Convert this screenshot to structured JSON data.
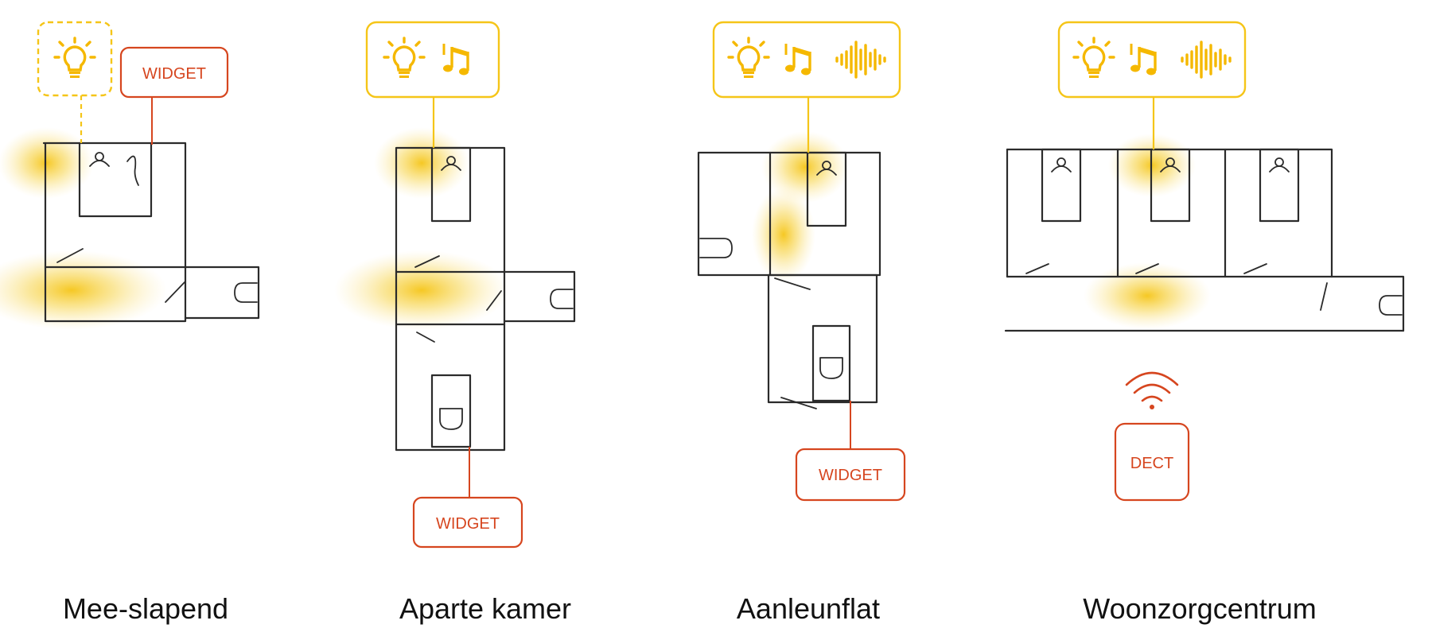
{
  "colors": {
    "accent_yellow": "#f5c518",
    "accent_red": "#d6461f",
    "ink": "#2b2b2b"
  },
  "scenarios": [
    {
      "caption": "Mee-slapend",
      "icons": [
        "bulb-icon"
      ],
      "device_label": "WIDGET"
    },
    {
      "caption": "Aparte kamer",
      "icons": [
        "bulb-icon",
        "music-note-icon"
      ],
      "device_label": "WIDGET"
    },
    {
      "caption": "Aanleunflat",
      "icons": [
        "bulb-icon",
        "music-note-icon",
        "sound-wave-icon"
      ],
      "device_label": "WIDGET"
    },
    {
      "caption": "Woonzorgcentrum",
      "icons": [
        "bulb-icon",
        "music-note-icon",
        "sound-wave-icon",
        "wifi-icon"
      ],
      "device_label": "DECT"
    }
  ]
}
